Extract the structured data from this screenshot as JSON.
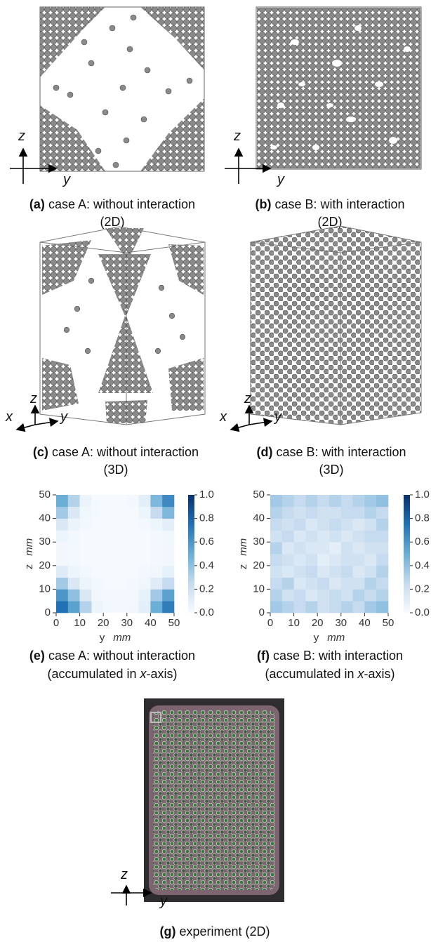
{
  "panels": [
    {
      "label": "(a)",
      "caption": [
        "case A: without interaction",
        "(2D)"
      ],
      "axes": [
        "z",
        "y"
      ]
    },
    {
      "label": "(b)",
      "caption": [
        "case B: with interaction",
        "(2D)"
      ],
      "axes": [
        "z",
        "y"
      ]
    },
    {
      "label": "(c)",
      "caption": [
        "case A: without interaction",
        "(3D)"
      ],
      "axes": [
        "z",
        "x",
        "y"
      ]
    },
    {
      "label": "(d)",
      "caption": [
        "case B: with interaction",
        "(3D)"
      ],
      "axes": [
        "z",
        "x",
        "y"
      ]
    },
    {
      "label": "(e)",
      "caption": [
        "case A: without interaction",
        "(accumulated in ",
        "x",
        "-axis)"
      ]
    },
    {
      "label": "(f)",
      "caption": [
        "case B: with interaction",
        "(accumulated in ",
        "x",
        "-axis)"
      ]
    },
    {
      "label": "(g)",
      "caption": [
        "experiment (2D)"
      ],
      "axes": [
        "z",
        "y"
      ]
    }
  ],
  "heatmaps": [
    {
      "type": "heatmap",
      "xlabel": {
        "name": "y",
        "unit": "mm"
      },
      "ylabel": {
        "name": "z",
        "unit": "mm"
      },
      "xlim": [
        0,
        50
      ],
      "ylim": [
        0,
        50
      ],
      "xticks": [
        0,
        10,
        20,
        30,
        40,
        50
      ],
      "yticks": [
        0,
        10,
        20,
        30,
        40,
        50
      ],
      "clim": [
        0,
        1
      ],
      "cticks": [
        {
          "value": 0,
          "label": "0.0"
        },
        {
          "value": 0.2,
          "label": "0.2"
        },
        {
          "value": 0.4,
          "label": "0.4"
        },
        {
          "value": 0.6,
          "label": "0.6"
        },
        {
          "value": 0.8,
          "label": "0.8"
        },
        {
          "value": 1,
          "label": "1.0"
        }
      ],
      "colormap": [
        "#f7fbff",
        "#c6dbef",
        "#6baed6",
        "#2171b5",
        "#08306b"
      ],
      "z": [
        [
          0.75,
          0.55,
          0.3,
          0.05,
          0.02,
          0.02,
          0.03,
          0.1,
          0.5,
          0.7
        ],
        [
          0.6,
          0.4,
          0.15,
          0.03,
          0.02,
          0.02,
          0.02,
          0.08,
          0.35,
          0.55
        ],
        [
          0.35,
          0.15,
          0.05,
          0.02,
          0.01,
          0.01,
          0.02,
          0.04,
          0.12,
          0.25
        ],
        [
          0.12,
          0.05,
          0.02,
          0.01,
          0.01,
          0.01,
          0.01,
          0.02,
          0.04,
          0.08
        ],
        [
          0.03,
          0.02,
          0.01,
          0.01,
          0.01,
          0.01,
          0.01,
          0.01,
          0.02,
          0.03
        ],
        [
          0.03,
          0.02,
          0.01,
          0.01,
          0.01,
          0.01,
          0.01,
          0.01,
          0.02,
          0.03
        ],
        [
          0.05,
          0.02,
          0.01,
          0.01,
          0.01,
          0.01,
          0.01,
          0.01,
          0.02,
          0.04
        ],
        [
          0.15,
          0.06,
          0.02,
          0.01,
          0.01,
          0.01,
          0.01,
          0.02,
          0.05,
          0.1
        ],
        [
          0.35,
          0.15,
          0.04,
          0.01,
          0.01,
          0.01,
          0.01,
          0.05,
          0.25,
          0.45
        ],
        [
          0.5,
          0.3,
          0.06,
          0.01,
          0.01,
          0.01,
          0.02,
          0.1,
          0.45,
          0.65
        ]
      ]
    },
    {
      "type": "heatmap",
      "xlabel": {
        "name": "y",
        "unit": "mm"
      },
      "ylabel": {
        "name": "z",
        "unit": "mm"
      },
      "xlim": [
        0,
        50
      ],
      "ylim": [
        0,
        50
      ],
      "xticks": [
        0,
        10,
        20,
        30,
        40,
        50
      ],
      "yticks": [
        0,
        10,
        20,
        30,
        40,
        50
      ],
      "clim": [
        0,
        1
      ],
      "cticks": [
        {
          "value": 0,
          "label": "0.0"
        },
        {
          "value": 0.2,
          "label": "0.2"
        },
        {
          "value": 0.4,
          "label": "0.4"
        },
        {
          "value": 0.6,
          "label": "0.6"
        },
        {
          "value": 0.8,
          "label": "0.8"
        },
        {
          "value": 1,
          "label": "1.0"
        }
      ],
      "colormap": [
        "#f7fbff",
        "#c6dbef",
        "#6baed6",
        "#2171b5",
        "#08306b"
      ],
      "z": [
        [
          0.35,
          0.3,
          0.25,
          0.3,
          0.2,
          0.25,
          0.3,
          0.25,
          0.35,
          0.4
        ],
        [
          0.3,
          0.2,
          0.25,
          0.15,
          0.2,
          0.25,
          0.2,
          0.3,
          0.25,
          0.3
        ],
        [
          0.25,
          0.3,
          0.15,
          0.2,
          0.25,
          0.15,
          0.2,
          0.2,
          0.3,
          0.25
        ],
        [
          0.2,
          0.15,
          0.2,
          0.25,
          0.15,
          0.2,
          0.25,
          0.15,
          0.2,
          0.3
        ],
        [
          0.25,
          0.2,
          0.15,
          0.2,
          0.1,
          0.15,
          0.2,
          0.2,
          0.15,
          0.25
        ],
        [
          0.3,
          0.15,
          0.2,
          0.15,
          0.15,
          0.1,
          0.2,
          0.15,
          0.2,
          0.2
        ],
        [
          0.2,
          0.25,
          0.15,
          0.2,
          0.15,
          0.2,
          0.15,
          0.2,
          0.25,
          0.25
        ],
        [
          0.25,
          0.2,
          0.25,
          0.15,
          0.2,
          0.25,
          0.2,
          0.15,
          0.2,
          0.3
        ],
        [
          0.3,
          0.25,
          0.2,
          0.25,
          0.2,
          0.2,
          0.25,
          0.25,
          0.3,
          0.25
        ],
        [
          0.35,
          0.3,
          0.25,
          0.3,
          0.25,
          0.3,
          0.25,
          0.3,
          0.35,
          0.4
        ]
      ]
    }
  ]
}
